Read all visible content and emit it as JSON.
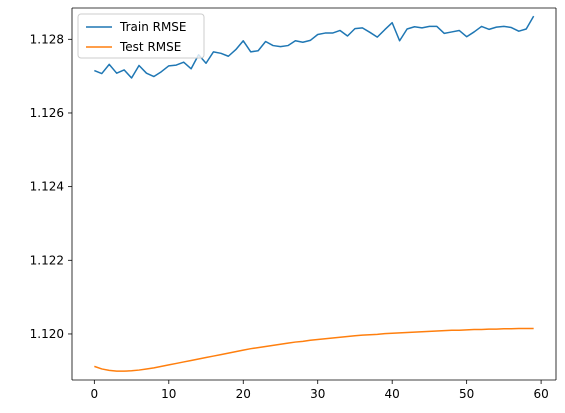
{
  "chart_data": {
    "type": "line",
    "title": "",
    "xlabel": "",
    "ylabel": "",
    "xlim": [
      -3,
      62
    ],
    "ylim": [
      1.11875,
      1.12885
    ],
    "xticks": [
      0,
      10,
      20,
      30,
      40,
      50,
      60
    ],
    "yticks": [
      1.12,
      1.122,
      1.124,
      1.126,
      1.128
    ],
    "xtick_labels": [
      "0",
      "10",
      "20",
      "30",
      "40",
      "50",
      "60"
    ],
    "ytick_labels": [
      "1.120",
      "1.122",
      "1.124",
      "1.126",
      "1.128"
    ],
    "grid": false,
    "legend_position": "top-left",
    "series": [
      {
        "name": "Train RMSE",
        "color": "#1f77b4",
        "x": [
          0,
          1,
          2,
          3,
          4,
          5,
          6,
          7,
          8,
          9,
          10,
          11,
          12,
          13,
          14,
          15,
          16,
          17,
          18,
          19,
          20,
          21,
          22,
          23,
          24,
          25,
          26,
          27,
          28,
          29,
          30,
          31,
          32,
          33,
          34,
          35,
          36,
          37,
          38,
          39,
          40,
          41,
          42,
          43,
          44,
          45,
          46,
          47,
          48,
          49,
          50,
          51,
          52,
          53,
          54,
          55,
          56,
          57,
          58,
          59
        ],
        "values": [
          1.12715,
          1.12707,
          1.12732,
          1.12708,
          1.12717,
          1.12695,
          1.12729,
          1.12708,
          1.12699,
          1.12712,
          1.12728,
          1.1273,
          1.12738,
          1.1272,
          1.12758,
          1.12735,
          1.12766,
          1.12762,
          1.12754,
          1.12772,
          1.12796,
          1.12766,
          1.12769,
          1.12794,
          1.12783,
          1.1278,
          1.12783,
          1.12796,
          1.12792,
          1.12797,
          1.12813,
          1.12817,
          1.12817,
          1.12824,
          1.12809,
          1.12829,
          1.12831,
          1.12819,
          1.12806,
          1.12826,
          1.12845,
          1.12796,
          1.12828,
          1.12834,
          1.12831,
          1.12835,
          1.12835,
          1.12816,
          1.1282,
          1.12824,
          1.12807,
          1.1282,
          1.12835,
          1.12827,
          1.12833,
          1.12835,
          1.12832,
          1.12822,
          1.12828,
          1.12863
        ]
      },
      {
        "name": "Test RMSE",
        "color": "#ff7f0e",
        "x": [
          0,
          1,
          2,
          3,
          4,
          5,
          6,
          7,
          8,
          9,
          10,
          11,
          12,
          13,
          14,
          15,
          16,
          17,
          18,
          19,
          20,
          21,
          22,
          23,
          24,
          25,
          26,
          27,
          28,
          29,
          30,
          31,
          32,
          33,
          34,
          35,
          36,
          37,
          38,
          39,
          40,
          41,
          42,
          43,
          44,
          45,
          46,
          47,
          48,
          49,
          50,
          51,
          52,
          53,
          54,
          55,
          56,
          57,
          58,
          59
        ],
        "values": [
          1.11912,
          1.11905,
          1.11901,
          1.11899,
          1.11899,
          1.119,
          1.11902,
          1.11905,
          1.11908,
          1.11912,
          1.11916,
          1.1192,
          1.11924,
          1.11928,
          1.11932,
          1.11936,
          1.1194,
          1.11944,
          1.11948,
          1.11952,
          1.11956,
          1.1196,
          1.11963,
          1.11966,
          1.11969,
          1.11972,
          1.11975,
          1.11978,
          1.1198,
          1.11983,
          1.11985,
          1.11987,
          1.11989,
          1.11991,
          1.11993,
          1.11995,
          1.11997,
          1.11998,
          1.11999,
          1.12001,
          1.12002,
          1.12003,
          1.12004,
          1.12005,
          1.12006,
          1.12007,
          1.12008,
          1.12009,
          1.1201,
          1.1201,
          1.12011,
          1.12012,
          1.12012,
          1.12013,
          1.12013,
          1.12014,
          1.12014,
          1.12015,
          1.12015,
          1.12015
        ]
      }
    ]
  }
}
